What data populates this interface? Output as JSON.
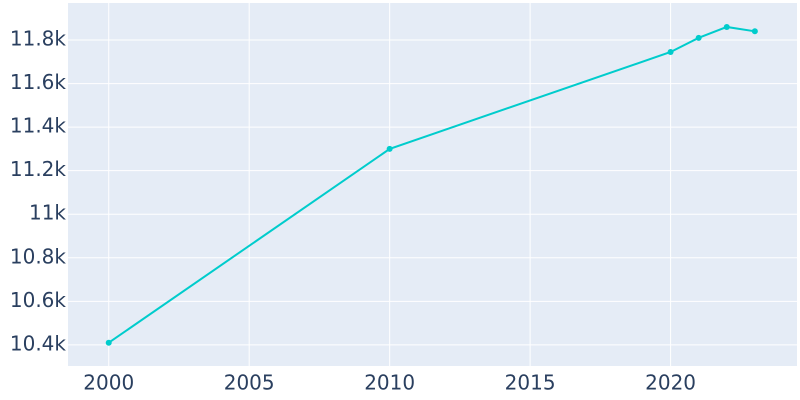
{
  "chart_data": {
    "type": "line",
    "x": [
      2000,
      2010,
      2020,
      2021,
      2022,
      2023
    ],
    "series": [
      {
        "color": "#00cccc",
        "values": [
          10410,
          11300,
          11745,
          11810,
          11860,
          11840
        ]
      }
    ],
    "xlim": [
      1998.55,
      2024.5
    ],
    "xticks": [
      2000,
      2005,
      2010,
      2015,
      2020
    ],
    "ylim": [
      10303,
      11970
    ],
    "yticks": [
      {
        "value": 10400,
        "label": "10.4k"
      },
      {
        "value": 10600,
        "label": "10.6k"
      },
      {
        "value": 10800,
        "label": "10.8k"
      },
      {
        "value": 11000,
        "label": "11k"
      },
      {
        "value": 11200,
        "label": "11.2k"
      },
      {
        "value": 11400,
        "label": "11.4k"
      },
      {
        "value": 11600,
        "label": "11.6k"
      },
      {
        "value": 11800,
        "label": "11.8k"
      }
    ],
    "grid": true,
    "background": "#e5ecf6"
  }
}
